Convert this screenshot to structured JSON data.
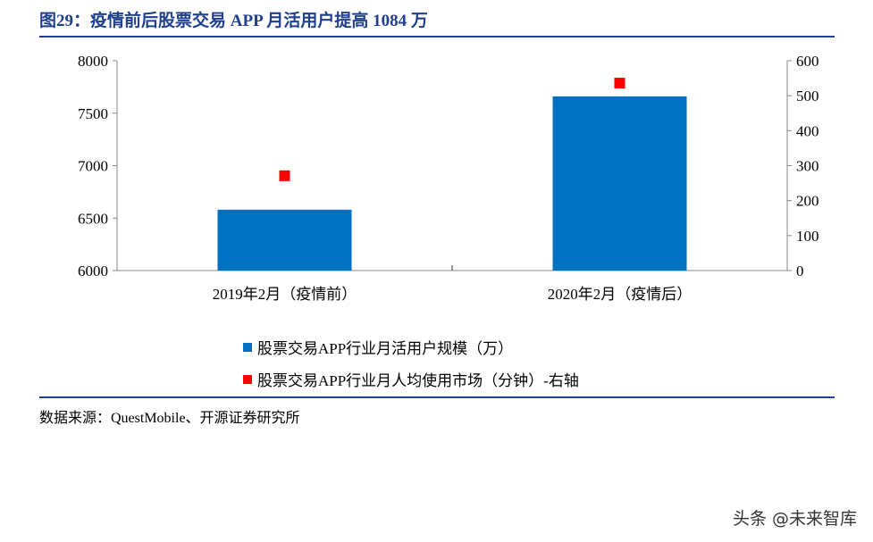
{
  "title": "图29：疫情前后股票交易 APP 月活用户提高 1084 万",
  "source": "数据来源：QuestMobile、开源证券研究所",
  "watermark": "头条 @未来智库",
  "colors": {
    "bar": "#0070c0",
    "marker": "#ff0000",
    "title": "#1f3f8f"
  },
  "chart_data": {
    "type": "bar",
    "categories": [
      "2019年2月（疫情前）",
      "2020年2月（疫情后）"
    ],
    "series": [
      {
        "name": "股票交易APP行业月活用户规模（万）",
        "type": "bar",
        "axis": "left",
        "values": [
          6580,
          7660
        ]
      },
      {
        "name": "股票交易APP行业月人均使用市场（分钟）-右轴",
        "type": "scatter",
        "axis": "right",
        "values": [
          271,
          536
        ]
      }
    ],
    "yleft": {
      "range": [
        6000,
        8000
      ],
      "ticks": [
        6000,
        6500,
        7000,
        7500,
        8000
      ]
    },
    "yright": {
      "range": [
        0,
        600
      ],
      "ticks": [
        0,
        100,
        200,
        300,
        400,
        500,
        600
      ]
    },
    "legend_position": "bottom",
    "grid": false
  }
}
